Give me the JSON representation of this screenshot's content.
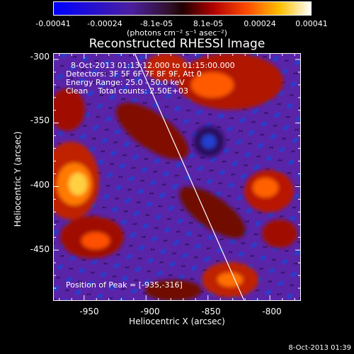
{
  "colorbar": {
    "tick_labels": [
      "-0.00041",
      "-0.00024",
      "-8.1e-05",
      "8.1e-05",
      "0.00024",
      "0.00041"
    ],
    "units_label": "(photons cm⁻² s⁻¹ asec⁻²)"
  },
  "title": "Reconstructed RHESSI Image",
  "info": {
    "time_range": "8-Oct-2013 01:13:12.000 to 01:15:00.000",
    "detectors": "Detectors: 3F 5F 6F 7F 8F 9F, Att 0",
    "energy": "Energy Range: 25.0 - 50.0 keV",
    "method": "Clean    Total counts: 2.50E+03",
    "peak": "Position of Peak = [-935,-316]"
  },
  "axes": {
    "xlabel": "Heliocentric X (arcsec)",
    "ylabel": "Heliocentric Y (arcsec)",
    "xticks": [
      "-950",
      "-900",
      "-850",
      "-800"
    ],
    "yticks": [
      "-300",
      "-350",
      "-400",
      "-450"
    ],
    "x_range": [
      -975,
      -775
    ],
    "y_range": [
      -490,
      -295
    ]
  },
  "footer_timestamp": "8-Oct-2013 01:39",
  "colors": {
    "background": "#000000",
    "limb": "#ffffff",
    "frame": "#ffffff"
  }
}
